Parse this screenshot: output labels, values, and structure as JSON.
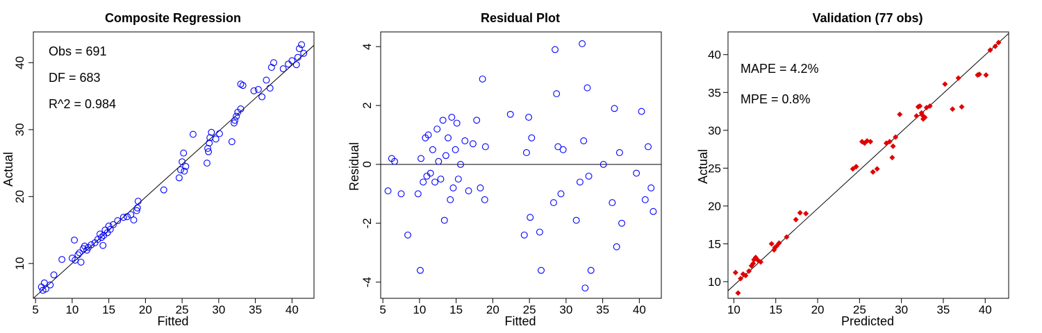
{
  "chart_data": [
    {
      "type": "scatter",
      "title": "Composite Regression",
      "xlabel": "Fitted",
      "ylabel": "Actual",
      "xlim": [
        4.7,
        43.0
      ],
      "ylim": [
        4.8,
        44.6
      ],
      "xticks": [
        5,
        10,
        15,
        20,
        25,
        30,
        35,
        40
      ],
      "yticks": [
        10,
        20,
        30,
        40
      ],
      "ytick_rotate": true,
      "marker": "open-circle",
      "color": "#0000ff",
      "reference_line": {
        "x1": 4.7,
        "y1": 4.8,
        "x2": 43.0,
        "y2": 42.6
      },
      "annotations": [
        "Obs = 691",
        "DF = 683",
        "R^2 = 0.984"
      ],
      "x": [
        5.8,
        6.2,
        6.4,
        7.0,
        7.5,
        8.6,
        10.0,
        10.4,
        10.8,
        11.0,
        11.2,
        11.5,
        11.7,
        12.2,
        12.6,
        13.1,
        13.5,
        14.0,
        14.3,
        14.5,
        14.8,
        15.2,
        15.6,
        16.2,
        17.0,
        17.5,
        18.0,
        18.4,
        18.8,
        19.0,
        22.5,
        24.6,
        24.8,
        25.0,
        25.2,
        25.5,
        26.5,
        28.4,
        28.6,
        28.8,
        29.0,
        29.6,
        30.1,
        31.8,
        32.1,
        32.4,
        32.6,
        33.0,
        33.3,
        34.8,
        35.4,
        35.9,
        36.5,
        37.2,
        37.5,
        38.8,
        39.5,
        40.0,
        40.6,
        41.0,
        41.3,
        41.6,
        6.0,
        10.3,
        12.0,
        13.8,
        15.0,
        18.9,
        25.3,
        28.5,
        32.2,
        33.0,
        37.0,
        40.8,
        14.2,
        28.7
      ],
      "y": [
        6.5,
        7.1,
        6.2,
        6.8,
        8.3,
        10.6,
        10.8,
        10.5,
        11.3,
        11.6,
        10.2,
        12.2,
        12.6,
        12.4,
        12.8,
        13.1,
        13.6,
        13.9,
        14.2,
        15.0,
        14.6,
        15.1,
        15.8,
        16.4,
        16.9,
        17.0,
        17.3,
        16.5,
        17.9,
        19.3,
        21.0,
        22.8,
        24.0,
        25.2,
        26.5,
        24.5,
        29.3,
        25.0,
        26.7,
        28.8,
        29.6,
        28.6,
        29.4,
        28.2,
        31.0,
        32.0,
        32.6,
        33.1,
        36.6,
        35.8,
        36.0,
        34.9,
        37.4,
        39.3,
        40.0,
        39.1,
        39.8,
        40.3,
        39.7,
        42.1,
        42.7,
        41.4,
        6.0,
        13.5,
        12.0,
        14.4,
        15.6,
        18.3,
        23.8,
        27.2,
        31.4,
        36.8,
        36.2,
        40.8,
        12.7,
        28.0
      ]
    },
    {
      "type": "scatter",
      "title": "Residual Plot",
      "xlabel": "Fitted",
      "ylabel": "Residual",
      "xlim": [
        4.7,
        43.0
      ],
      "ylim": [
        -4.55,
        4.5
      ],
      "xticks": [
        5,
        10,
        15,
        20,
        25,
        30,
        35,
        40
      ],
      "yticks": [
        -4,
        -2,
        0,
        2,
        4
      ],
      "ytick_rotate": true,
      "marker": "open-circle",
      "color": "#0000ff",
      "reference_line": {
        "x1": 4.7,
        "y1": 0,
        "x2": 43.0,
        "y2": 0
      },
      "annotations": [],
      "x": [
        5.7,
        6.2,
        6.6,
        7.5,
        8.4,
        9.8,
        10.1,
        10.2,
        10.5,
        10.8,
        11.0,
        11.2,
        11.5,
        11.8,
        12.1,
        12.4,
        12.6,
        12.9,
        13.2,
        13.4,
        13.6,
        13.9,
        14.2,
        14.4,
        14.6,
        14.9,
        15.1,
        15.3,
        15.6,
        16.2,
        16.7,
        17.3,
        17.8,
        18.3,
        18.6,
        18.9,
        19.0,
        22.4,
        24.3,
        24.6,
        24.9,
        25.1,
        25.3,
        26.4,
        26.6,
        28.3,
        28.5,
        28.7,
        28.9,
        29.3,
        29.6,
        31.4,
        31.9,
        32.2,
        32.4,
        32.6,
        32.9,
        33.1,
        33.4,
        35.1,
        36.3,
        36.6,
        36.9,
        37.3,
        37.6,
        39.6,
        40.3,
        40.8,
        41.2,
        41.6,
        41.9
      ],
      "y": [
        -0.9,
        0.2,
        0.1,
        -1.0,
        -2.4,
        -1.0,
        -3.6,
        0.2,
        -0.6,
        0.9,
        -0.4,
        1.0,
        -0.3,
        0.5,
        -0.6,
        1.2,
        0.1,
        -0.5,
        1.5,
        -1.9,
        0.3,
        0.9,
        -1.2,
        1.6,
        -0.8,
        0.5,
        1.4,
        -0.5,
        0.0,
        0.8,
        -0.9,
        0.7,
        1.5,
        -0.8,
        2.9,
        -1.2,
        0.6,
        1.7,
        -2.4,
        0.4,
        1.6,
        -1.8,
        0.9,
        -2.3,
        -3.6,
        -1.3,
        3.9,
        2.4,
        0.6,
        -1.0,
        0.5,
        -1.9,
        -0.6,
        4.1,
        0.8,
        -4.2,
        2.6,
        -0.4,
        -3.6,
        0.0,
        -1.3,
        1.9,
        -2.8,
        0.4,
        -2.0,
        -0.3,
        1.8,
        -1.2,
        0.6,
        -0.8,
        -1.6
      ]
    },
    {
      "type": "scatter",
      "title": "Validation (77 obs)",
      "xlabel": "Predicted",
      "ylabel": "Actual",
      "xlim": [
        9.3,
        42.8
      ],
      "ylim": [
        7.8,
        43.0
      ],
      "xticks": [
        10,
        15,
        20,
        25,
        30,
        35,
        40
      ],
      "yticks": [
        10,
        15,
        20,
        25,
        30,
        35,
        40
      ],
      "ytick_rotate": false,
      "marker": "filled-diamond",
      "color": "#e00000",
      "reference_line": {
        "x1": 9.3,
        "y1": 8.8,
        "x2": 42.8,
        "y2": 42.8
      },
      "annotations": [
        "MAPE = 4.2%",
        "MPE = 0.8%"
      ],
      "x": [
        10.2,
        10.5,
        10.8,
        11.1,
        11.4,
        11.8,
        12.1,
        12.4,
        12.6,
        12.9,
        13.2,
        14.5,
        14.8,
        15.1,
        15.4,
        16.3,
        17.4,
        17.9,
        18.6,
        24.2,
        24.6,
        25.3,
        25.6,
        25.9,
        26.3,
        26.6,
        27.1,
        28.2,
        28.6,
        29.0,
        29.3,
        29.8,
        31.8,
        32.0,
        32.2,
        32.4,
        32.6,
        32.8,
        33.0,
        33.4,
        35.2,
        36.1,
        36.8,
        37.2,
        39.1,
        39.3,
        40.1,
        40.6,
        41.2,
        41.6,
        28.9,
        12.3,
        14.9,
        32.5
      ],
      "y": [
        11.2,
        8.5,
        10.4,
        11.0,
        10.8,
        11.4,
        12.1,
        12.9,
        13.2,
        12.8,
        12.6,
        15.0,
        14.2,
        14.7,
        15.1,
        15.9,
        18.2,
        19.1,
        19.0,
        24.9,
        25.2,
        28.5,
        28.3,
        28.6,
        28.5,
        24.5,
        24.9,
        28.3,
        28.5,
        27.9,
        29.1,
        32.1,
        31.9,
        33.1,
        33.2,
        32.3,
        31.5,
        31.7,
        33.0,
        33.2,
        36.1,
        32.8,
        36.9,
        33.1,
        37.3,
        37.4,
        37.3,
        40.6,
        41.1,
        41.6,
        26.4,
        12.4,
        14.5,
        32.0
      ]
    }
  ]
}
